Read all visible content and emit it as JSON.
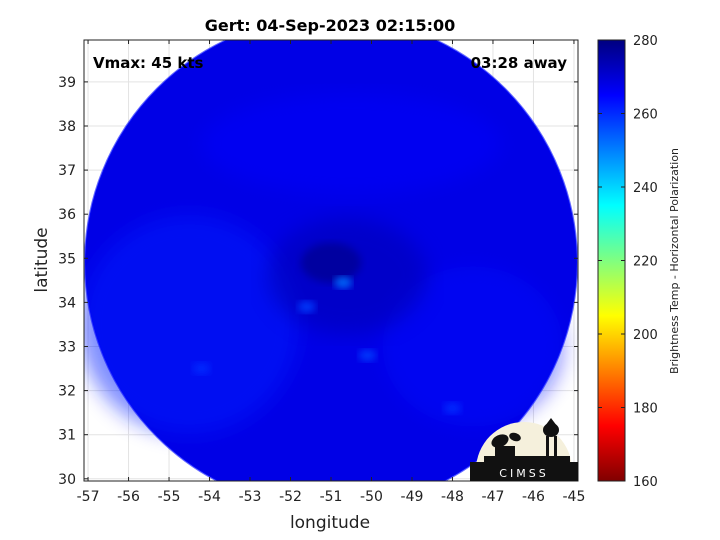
{
  "chart_data": {
    "type": "heatmap",
    "title": "Gert: 04-Sep-2023 02:15:00",
    "xlabel": "longitude",
    "ylabel": "latitude",
    "xlim": [
      -57.1,
      -44.9
    ],
    "ylim": [
      29.95,
      39.95
    ],
    "xticks": [
      -57,
      -56,
      -55,
      -54,
      -53,
      -52,
      -51,
      -50,
      -49,
      -48,
      -47,
      -46,
      -45
    ],
    "yticks": [
      30,
      31,
      32,
      33,
      34,
      35,
      36,
      37,
      38,
      39
    ],
    "grid": true,
    "annotations": {
      "vmax": "Vmax: 45 kts",
      "time_away": "03:28 away"
    },
    "colorbar": {
      "label": "Brightness Temp - Horizontal Polarization",
      "range": [
        160,
        280
      ],
      "ticks": [
        160,
        180,
        200,
        220,
        240,
        260,
        280
      ],
      "colors": [
        "#800000",
        "#ff0000",
        "#ff8000",
        "#ffff00",
        "#80ff80",
        "#00ffff",
        "#0080ff",
        "#0000ff",
        "#000080"
      ]
    },
    "swath": {
      "center_lon": -51.0,
      "center_lat": 34.9,
      "typical_value": 268,
      "storm_center": {
        "lon": -51.0,
        "lat": 34.9,
        "value": 277
      },
      "warm_spots": [
        {
          "lon": -50.7,
          "lat": 34.45,
          "value": 252
        },
        {
          "lon": -51.6,
          "lat": 33.9,
          "value": 258
        },
        {
          "lon": -50.1,
          "lat": 32.8,
          "value": 258
        },
        {
          "lon": -54.2,
          "lat": 32.5,
          "value": 260
        },
        {
          "lon": -48.0,
          "lat": 31.6,
          "value": 260
        }
      ]
    },
    "logo": "CIMSS"
  }
}
